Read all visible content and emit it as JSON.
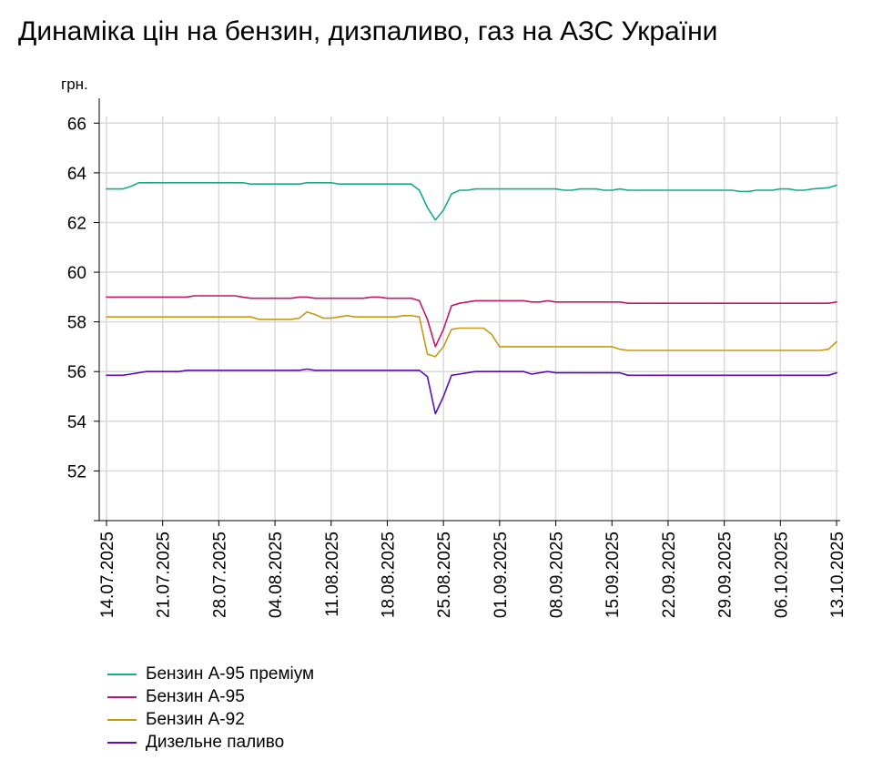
{
  "chart_data": {
    "type": "line",
    "title": "Динаміка цін на бензин, дизпаливо, газ на АЗС України",
    "ylabel": "грн.",
    "xlabel": "",
    "ylim": [
      50,
      67
    ],
    "yticks": [
      52,
      54,
      56,
      58,
      60,
      62,
      64,
      66
    ],
    "x_range": [
      "14.07.2025",
      "13.10.2025"
    ],
    "xtick_labels": [
      "14.07.2025",
      "21.07.2025",
      "28.07.2025",
      "04.08.2025",
      "11.08.2025",
      "18.08.2025",
      "25.08.2025",
      "01.09.2025",
      "08.09.2025",
      "15.09.2025",
      "22.09.2025",
      "29.09.2025",
      "06.10.2025",
      "13.10.2025"
    ],
    "grid": true,
    "legend_position": "bottom-left",
    "series": [
      {
        "name": "Бензин А-95 преміум",
        "color": "#1aa88a",
        "points": [
          [
            "14.07.2025",
            63.35
          ],
          [
            "16.07.2025",
            63.35
          ],
          [
            "17.07.2025",
            63.45
          ],
          [
            "18.07.2025",
            63.6
          ],
          [
            "31.07.2025",
            63.6
          ],
          [
            "01.08.2025",
            63.55
          ],
          [
            "07.08.2025",
            63.55
          ],
          [
            "08.08.2025",
            63.6
          ],
          [
            "11.08.2025",
            63.6
          ],
          [
            "12.08.2025",
            63.55
          ],
          [
            "21.08.2025",
            63.55
          ],
          [
            "22.08.2025",
            63.3
          ],
          [
            "23.08.2025",
            62.6
          ],
          [
            "24.08.2025",
            62.1
          ],
          [
            "25.08.2025",
            62.5
          ],
          [
            "26.08.2025",
            63.15
          ],
          [
            "27.08.2025",
            63.3
          ],
          [
            "28.08.2025",
            63.3
          ],
          [
            "29.08.2025",
            63.35
          ],
          [
            "07.09.2025",
            63.35
          ],
          [
            "08.09.2025",
            63.35
          ],
          [
            "09.09.2025",
            63.3
          ],
          [
            "10.09.2025",
            63.3
          ],
          [
            "11.09.2025",
            63.35
          ],
          [
            "13.09.2025",
            63.35
          ],
          [
            "14.09.2025",
            63.3
          ],
          [
            "15.09.2025",
            63.3
          ],
          [
            "16.09.2025",
            63.35
          ],
          [
            "17.09.2025",
            63.3
          ],
          [
            "30.09.2025",
            63.3
          ],
          [
            "01.10.2025",
            63.25
          ],
          [
            "02.10.2025",
            63.25
          ],
          [
            "03.10.2025",
            63.3
          ],
          [
            "05.10.2025",
            63.3
          ],
          [
            "06.10.2025",
            63.35
          ],
          [
            "07.10.2025",
            63.35
          ],
          [
            "08.10.2025",
            63.3
          ],
          [
            "09.10.2025",
            63.3
          ],
          [
            "10.10.2025",
            63.35
          ],
          [
            "12.10.2025",
            63.4
          ],
          [
            "13.10.2025",
            63.5
          ]
        ]
      },
      {
        "name": "Бензин А-95",
        "color": "#c2186b",
        "points": [
          [
            "14.07.2025",
            59.0
          ],
          [
            "24.07.2025",
            59.0
          ],
          [
            "25.07.2025",
            59.05
          ],
          [
            "30.07.2025",
            59.05
          ],
          [
            "31.07.2025",
            59.0
          ],
          [
            "01.08.2025",
            58.95
          ],
          [
            "06.08.2025",
            58.95
          ],
          [
            "07.08.2025",
            59.0
          ],
          [
            "08.08.2025",
            59.0
          ],
          [
            "09.08.2025",
            58.95
          ],
          [
            "15.08.2025",
            58.95
          ],
          [
            "16.08.2025",
            59.0
          ],
          [
            "17.08.2025",
            59.0
          ],
          [
            "18.08.2025",
            58.95
          ],
          [
            "21.08.2025",
            58.95
          ],
          [
            "22.08.2025",
            58.85
          ],
          [
            "23.08.2025",
            58.1
          ],
          [
            "24.08.2025",
            57.0
          ],
          [
            "25.08.2025",
            57.7
          ],
          [
            "26.08.2025",
            58.65
          ],
          [
            "27.08.2025",
            58.75
          ],
          [
            "28.08.2025",
            58.8
          ],
          [
            "29.08.2025",
            58.85
          ],
          [
            "04.09.2025",
            58.85
          ],
          [
            "05.09.2025",
            58.8
          ],
          [
            "06.09.2025",
            58.8
          ],
          [
            "07.09.2025",
            58.85
          ],
          [
            "08.09.2025",
            58.8
          ],
          [
            "16.09.2025",
            58.8
          ],
          [
            "17.09.2025",
            58.75
          ],
          [
            "12.10.2025",
            58.75
          ],
          [
            "13.10.2025",
            58.8
          ]
        ]
      },
      {
        "name": "Бензин А-92",
        "color": "#c49a12",
        "points": [
          [
            "14.07.2025",
            58.2
          ],
          [
            "01.08.2025",
            58.2
          ],
          [
            "02.08.2025",
            58.1
          ],
          [
            "06.08.2025",
            58.1
          ],
          [
            "07.08.2025",
            58.15
          ],
          [
            "08.08.2025",
            58.4
          ],
          [
            "09.08.2025",
            58.3
          ],
          [
            "10.08.2025",
            58.15
          ],
          [
            "11.08.2025",
            58.15
          ],
          [
            "12.08.2025",
            58.2
          ],
          [
            "13.08.2025",
            58.25
          ],
          [
            "14.08.2025",
            58.2
          ],
          [
            "19.08.2025",
            58.2
          ],
          [
            "20.08.2025",
            58.25
          ],
          [
            "21.08.2025",
            58.25
          ],
          [
            "22.08.2025",
            58.2
          ],
          [
            "23.08.2025",
            56.7
          ],
          [
            "24.08.2025",
            56.6
          ],
          [
            "25.08.2025",
            57.0
          ],
          [
            "26.08.2025",
            57.7
          ],
          [
            "27.08.2025",
            57.75
          ],
          [
            "30.08.2025",
            57.75
          ],
          [
            "31.08.2025",
            57.5
          ],
          [
            "01.09.2025",
            57.0
          ],
          [
            "15.09.2025",
            57.0
          ],
          [
            "16.09.2025",
            56.9
          ],
          [
            "17.09.2025",
            56.85
          ],
          [
            "11.10.2025",
            56.85
          ],
          [
            "12.10.2025",
            56.9
          ],
          [
            "13.10.2025",
            57.2
          ]
        ]
      },
      {
        "name": "Дизельне паливо",
        "color": "#5b0fb5",
        "points": [
          [
            "14.07.2025",
            55.85
          ],
          [
            "16.07.2025",
            55.85
          ],
          [
            "17.07.2025",
            55.9
          ],
          [
            "18.07.2025",
            55.95
          ],
          [
            "19.07.2025",
            56.0
          ],
          [
            "23.07.2025",
            56.0
          ],
          [
            "24.07.2025",
            56.05
          ],
          [
            "07.08.2025",
            56.05
          ],
          [
            "08.08.2025",
            56.1
          ],
          [
            "09.08.2025",
            56.05
          ],
          [
            "22.08.2025",
            56.05
          ],
          [
            "23.08.2025",
            55.8
          ],
          [
            "24.08.2025",
            54.3
          ],
          [
            "25.08.2025",
            55.0
          ],
          [
            "26.08.2025",
            55.85
          ],
          [
            "27.08.2025",
            55.9
          ],
          [
            "28.08.2025",
            55.95
          ],
          [
            "29.08.2025",
            56.0
          ],
          [
            "04.09.2025",
            56.0
          ],
          [
            "05.09.2025",
            55.9
          ],
          [
            "06.09.2025",
            55.95
          ],
          [
            "07.09.2025",
            56.0
          ],
          [
            "08.09.2025",
            55.95
          ],
          [
            "16.09.2025",
            55.95
          ],
          [
            "17.09.2025",
            55.85
          ],
          [
            "12.10.2025",
            55.85
          ],
          [
            "13.10.2025",
            55.95
          ]
        ]
      }
    ]
  }
}
